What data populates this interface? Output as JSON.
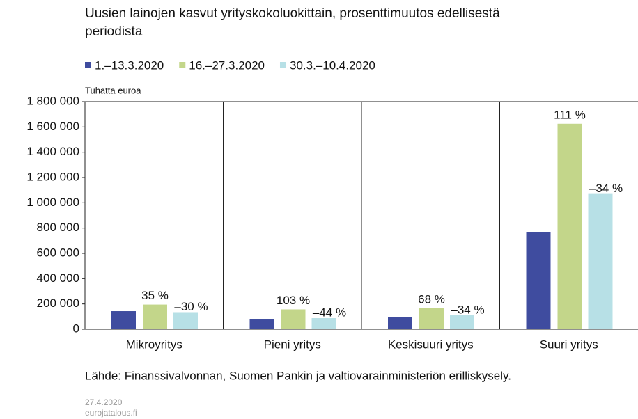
{
  "chart_data": {
    "type": "bar",
    "title": "Uusien lainojen kasvut yrityskokoluokittain, prosenttimuutos edellisestä periodista",
    "y_unit_label": "Tuhatta euroa",
    "categories": [
      "Mikroyritys",
      "Pieni yritys",
      "Keskisuuri yritys",
      "Suuri yritys"
    ],
    "series": [
      {
        "name": "1.–13.3.2020",
        "color": "#3f4c9f",
        "values": [
          143000,
          77000,
          99000,
          770000
        ]
      },
      {
        "name": "16.–27.3.2020",
        "color": "#c3d68a",
        "values": [
          195000,
          157000,
          166000,
          1625000
        ],
        "change_labels": [
          "35 %",
          "103 %",
          "68 %",
          "111 %"
        ]
      },
      {
        "name": "30.3.–10.4.2020",
        "color": "#b7e0e6",
        "values": [
          135000,
          88000,
          110000,
          1070000
        ],
        "change_labels": [
          "–30 %",
          "–44 %",
          "–34 %",
          "–34 %"
        ]
      }
    ],
    "ylim": [
      0,
      1800000
    ],
    "yticks": [
      0,
      {
        "value": 200000,
        "label": "200 000"
      },
      {
        "value": 400000,
        "label": "400 000"
      },
      {
        "value": 600000,
        "label": "600 000"
      },
      {
        "value": 800000,
        "label": "800 000"
      },
      {
        "value": 1000000,
        "label": "1 000 000"
      },
      {
        "value": 1200000,
        "label": "1 200 000"
      },
      {
        "value": 1400000,
        "label": "1 400 000"
      },
      {
        "value": 1600000,
        "label": "1 600 000"
      },
      {
        "value": 1800000,
        "label": "1 800 000"
      }
    ],
    "legend": "top",
    "source": "Lähde: Finanssivalvonnan, Suomen Pankin ja valtiovarainministeriön erilliskysely.",
    "date": "27.4.2020",
    "site": "eurojatalous.fi"
  }
}
